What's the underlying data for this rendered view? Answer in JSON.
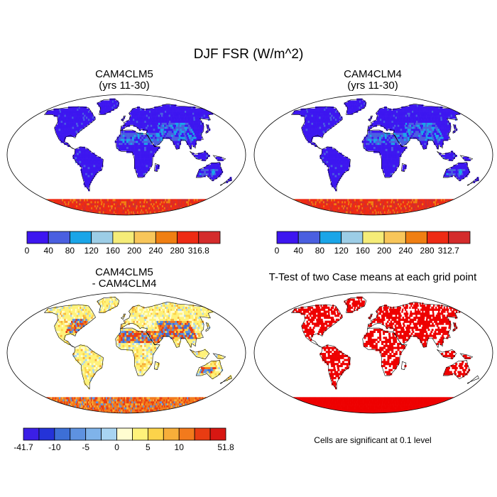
{
  "figure": {
    "title": "DJF FSR (W/m^2)",
    "panels": [
      {
        "title_line1": "CAM4CLM5",
        "title_line2": "(yrs 11-30)",
        "colorbar": {
          "labels": [
            "0",
            "40",
            "80",
            "120",
            "160",
            "200",
            "240",
            "280",
            "316.8"
          ],
          "colors": [
            "#3d16f0",
            "#4a5fe0",
            "#1aa5e8",
            "#9ccde6",
            "#f5ec78",
            "#f8c65a",
            "#f07f12",
            "#ee2b14",
            "#d42c2c"
          ]
        }
      },
      {
        "title_line1": "CAM4CLM4",
        "title_line2": "(yrs 11-30)",
        "colorbar": {
          "labels": [
            "0",
            "40",
            "80",
            "120",
            "160",
            "200",
            "240",
            "280",
            "312.7"
          ],
          "colors": [
            "#3d16f0",
            "#4a5fe0",
            "#1aa5e8",
            "#9ccde6",
            "#f5ec78",
            "#f8c65a",
            "#f07f12",
            "#ee2b14",
            "#d42c2c"
          ]
        }
      },
      {
        "title_line1": "CAM4CLM5",
        "title_line2": "- CAM4CLM4",
        "colorbar": {
          "labels": [
            "-41.7",
            "",
            "-10",
            "",
            "-5",
            "",
            "0",
            "",
            "5",
            "",
            "10",
            "",
            "",
            "51.8"
          ],
          "colors": [
            "#3b1fe6",
            "#2433d8",
            "#3d6fd6",
            "#5e92e0",
            "#7fb3ea",
            "#a8d4f2",
            "#fffdd0",
            "#fff27a",
            "#fcd34a",
            "#f7ae3a",
            "#f27a1c",
            "#e83c12",
            "#d71712"
          ]
        }
      },
      {
        "title": "T-Test of two Case means at each grid point",
        "note": "Cells are significant at 0.1 level",
        "significance_color": "#ee0000"
      }
    ]
  }
}
